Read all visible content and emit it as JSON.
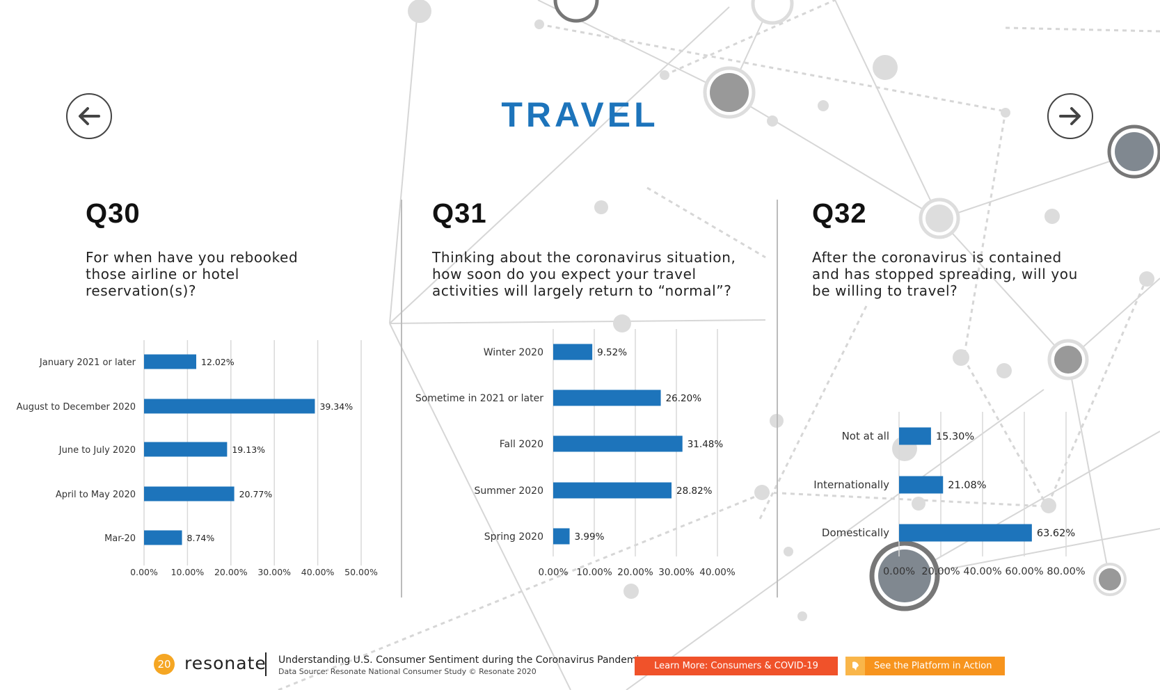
{
  "title": "TRAVEL",
  "nav": {
    "prev_icon": "arrow-left-icon",
    "next_icon": "arrow-right-icon"
  },
  "colors": {
    "accent": "#1d74bb",
    "bar": "#1d74bb",
    "learn_more": "#f0522a",
    "platform": "#f7941d",
    "page_badge": "#f5a623"
  },
  "questions": [
    {
      "id": "Q30",
      "text": "For when have you rebooked those airline or hotel reservation(s)?"
    },
    {
      "id": "Q31",
      "text": "Thinking about the coronavirus situation, how soon do you expect your travel activities will largely return to “normal”?"
    },
    {
      "id": "Q32",
      "text": "After the coronavirus is contained and has stopped spreading, will you be willing to travel?"
    }
  ],
  "chart_data": [
    {
      "type": "bar",
      "orientation": "horizontal",
      "categories": [
        "January 2021 or later",
        "August to December 2020",
        "June to July 2020",
        "April to May 2020",
        "Mar-20"
      ],
      "values": [
        12.02,
        39.34,
        19.13,
        20.77,
        8.74
      ],
      "labels": [
        "12.02%",
        "39.34%",
        "19.13%",
        "20.77%",
        "8.74%"
      ],
      "xlim": [
        0,
        50
      ],
      "ticks": [
        "0.00%",
        "10.00%",
        "20.00%",
        "30.00%",
        "40.00%",
        "50.00%"
      ],
      "grid": true
    },
    {
      "type": "bar",
      "orientation": "horizontal",
      "categories": [
        "Winter 2020",
        "Sometime in 2021 or later",
        "Fall 2020",
        "Summer 2020",
        "Spring 2020"
      ],
      "values": [
        9.52,
        26.2,
        31.48,
        28.82,
        3.99
      ],
      "labels": [
        "9.52%",
        "26.20%",
        "31.48%",
        "28.82%",
        "3.99%"
      ],
      "xlim": [
        0,
        40
      ],
      "ticks": [
        "0.00%",
        "10.00%",
        "20.00%",
        "30.00%",
        "40.00%"
      ],
      "grid": true
    },
    {
      "type": "bar",
      "orientation": "horizontal",
      "categories": [
        "Not at all",
        "Internationally",
        "Domestically"
      ],
      "values": [
        15.3,
        21.08,
        63.62
      ],
      "labels": [
        "15.30%",
        "21.08%",
        "63.62%"
      ],
      "xlim": [
        0,
        80
      ],
      "ticks": [
        "0.00%",
        "20.00%",
        "40.00%",
        "60.00%",
        "80.00%"
      ],
      "grid": true
    }
  ],
  "footer": {
    "page_number": "20",
    "logo": "resonate",
    "headline": "Understanding U.S. Consumer Sentiment during the Coronavirus Pandemic",
    "source": "Data Source: Resonate National Consumer Study © Resonate 2020",
    "learn_more": "Learn More: Consumers & COVID-19",
    "platform": "See the Platform in Action",
    "platform_icon": "rocket-icon"
  }
}
